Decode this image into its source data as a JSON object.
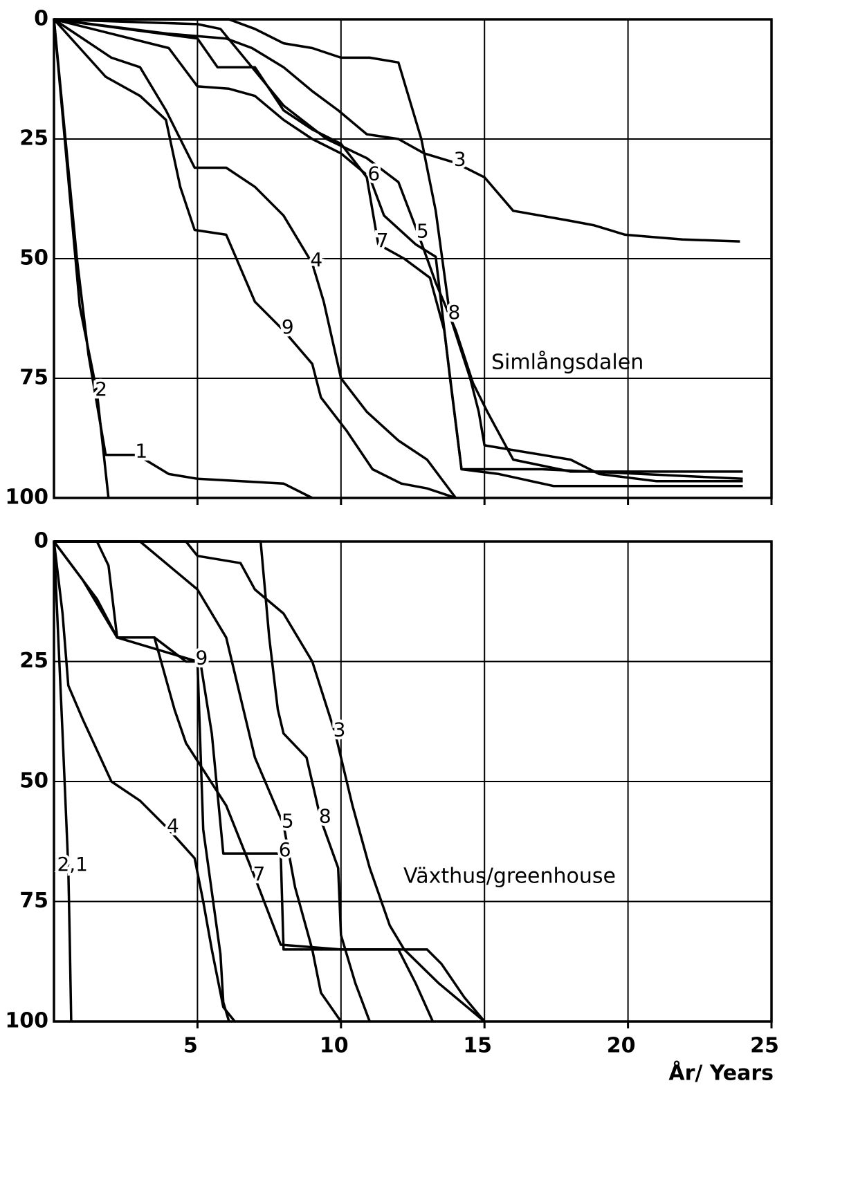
{
  "chart_data": [
    {
      "type": "line",
      "annotation": "Simlångsdalen",
      "xlim": [
        0,
        25
      ],
      "xticks": [
        5,
        10,
        15,
        20,
        25
      ],
      "xtick_labels": false,
      "ylim": [
        100,
        0
      ],
      "yticks": [
        0,
        25,
        50,
        75,
        100
      ],
      "grid": true,
      "series": [
        {
          "name": "1",
          "color": "#000000",
          "x": [
            0,
            0.8,
            1.2,
            1.8,
            2.9,
            4,
            5,
            8,
            9
          ],
          "values": [
            0,
            50,
            70,
            91,
            91,
            95,
            96,
            97,
            100
          ]
        },
        {
          "name": "2",
          "color": "#000000",
          "x": [
            0,
            0.9,
            1.5,
            1.9
          ],
          "values": [
            0,
            60,
            78,
            100
          ]
        },
        {
          "name": "3",
          "color": "#000000",
          "x": [
            0,
            4,
            6,
            6.9,
            8,
            9,
            9.9,
            10.9,
            12,
            12.9,
            14,
            15,
            16,
            17.9,
            18.8,
            19.9,
            20.9,
            21.9,
            23.9
          ],
          "values": [
            0,
            3,
            4,
            6,
            10,
            15,
            19,
            24,
            25,
            28,
            30,
            33,
            40,
            42,
            43,
            45,
            45.5,
            46,
            46.4
          ]
        },
        {
          "name": "4",
          "color": "#000000",
          "x": [
            0,
            2,
            3,
            3.9,
            4.9,
            6,
            7,
            8,
            9,
            9.4,
            10,
            10.9,
            12,
            13,
            14
          ],
          "values": [
            0,
            8,
            10,
            19,
            31,
            31,
            35,
            41,
            51,
            59,
            75,
            82,
            88,
            92,
            100
          ]
        },
        {
          "name": "5",
          "color": "#000000",
          "x": [
            0,
            5,
            5.8,
            6.9,
            8,
            9.5,
            10.9,
            12,
            12.7,
            13.3,
            14,
            14.6,
            15.1,
            16,
            18,
            24
          ],
          "values": [
            0,
            1,
            2,
            10,
            18,
            25,
            29,
            34,
            45,
            55,
            65,
            76,
            82,
            92,
            94.5,
            94.5
          ]
        },
        {
          "name": "6",
          "color": "#000000",
          "x": [
            0,
            4,
            5,
            6.1,
            7,
            8,
            9,
            10,
            11,
            11.5,
            12.6,
            13.3,
            13.8,
            14.2,
            17,
            24
          ],
          "values": [
            0,
            6,
            14,
            14.5,
            16,
            21,
            25,
            28,
            33,
            41,
            47,
            49.6,
            75,
            94,
            94,
            96
          ]
        },
        {
          "name": "7",
          "color": "#000000",
          "x": [
            0,
            5,
            5.7,
            7,
            8,
            9,
            10,
            10.9,
            11.3,
            12.2,
            13.1,
            13.6,
            14.2,
            15.5,
            17.4,
            24
          ],
          "values": [
            0,
            4,
            10,
            10,
            19,
            23,
            26,
            33,
            47,
            50,
            54,
            65,
            94,
            95,
            97.5,
            97.5
          ]
        },
        {
          "name": "8",
          "color": "#000000",
          "x": [
            0,
            6.1,
            7,
            8,
            9,
            10,
            11,
            12,
            12.8,
            13.3,
            13.8,
            14.5,
            14.8,
            15,
            17,
            18,
            19,
            21,
            24
          ],
          "values": [
            0,
            0,
            2,
            5,
            6,
            8,
            8,
            9,
            25,
            40,
            62,
            75,
            82,
            89,
            91,
            92,
            95,
            96.5,
            96.5
          ]
        },
        {
          "name": "9",
          "color": "#000000",
          "x": [
            0,
            1.8,
            3,
            3.9,
            4.4,
            4.9,
            6,
            7,
            8,
            9,
            9.3,
            10.2,
            11.1,
            12.1,
            13,
            14
          ],
          "values": [
            0,
            12,
            16,
            21,
            35,
            44,
            45,
            59,
            65,
            72,
            79,
            86,
            94,
            97,
            98,
            100
          ]
        }
      ]
    },
    {
      "type": "line",
      "annotation": "Växthus/greenhouse",
      "xlabel": "År/ Years",
      "xlim": [
        0,
        25
      ],
      "xticks": [
        5,
        10,
        15,
        20,
        25
      ],
      "xtick_labels": true,
      "ylim": [
        100,
        0
      ],
      "yticks": [
        0,
        25,
        50,
        75,
        100
      ],
      "grid": true,
      "series": [
        {
          "name": "2,1",
          "color": "#000000",
          "x": [
            0,
            0.3,
            0.5,
            0.55,
            0.6
          ],
          "values": [
            0,
            40,
            68,
            83,
            100
          ]
        },
        {
          "name": "3",
          "color": "#000000",
          "x": [
            0,
            4.6,
            5,
            6.5,
            7,
            8,
            9,
            9.8,
            10.4,
            11,
            11.7,
            12.2,
            13.4,
            15
          ],
          "values": [
            0,
            0,
            3,
            4.5,
            10,
            15,
            25,
            40,
            55,
            68,
            80,
            85,
            92,
            100
          ]
        },
        {
          "name": "4",
          "color": "#000000",
          "x": [
            0,
            0.3,
            0.5,
            1,
            2,
            3,
            4,
            4.9,
            5.2,
            5.5,
            5.9,
            6.3
          ],
          "values": [
            0,
            15,
            30,
            37,
            50,
            54,
            60,
            66,
            75,
            85,
            97,
            100
          ]
        },
        {
          "name": "5",
          "color": "#000000",
          "x": [
            0,
            3,
            5,
            6,
            6.6,
            7,
            8,
            8.4,
            9,
            9.3,
            10
          ],
          "values": [
            0,
            0,
            10,
            20,
            35,
            45,
            59,
            72,
            85,
            94,
            100
          ]
        },
        {
          "name": "6",
          "color": "#000000",
          "x": [
            0,
            1.5,
            2.2,
            3.5,
            4.6,
            5.1,
            5.5,
            5.9,
            7.9,
            8,
            11,
            13,
            13.5,
            14.3,
            15
          ],
          "values": [
            0,
            12,
            20,
            20,
            25,
            25,
            40,
            65,
            65,
            85,
            85,
            85,
            88,
            95,
            100
          ]
        },
        {
          "name": "7",
          "color": "#000000",
          "x": [
            0,
            1,
            2.2,
            3.5,
            4.2,
            4.6,
            6,
            7,
            7.9,
            10,
            12,
            12.6,
            13.2
          ],
          "values": [
            0,
            8,
            20,
            20,
            35,
            42,
            55,
            70,
            84,
            85,
            85,
            92,
            100
          ]
        },
        {
          "name": "8",
          "color": "#000000",
          "x": [
            0,
            7.2,
            7.5,
            7.8,
            8,
            8.8,
            9.3,
            9.9,
            10,
            10.5,
            11
          ],
          "values": [
            0,
            0,
            20,
            35,
            40,
            45,
            58,
            68,
            82,
            92,
            100
          ]
        },
        {
          "name": "9",
          "color": "#000000",
          "x": [
            0,
            1.5,
            1.9,
            2.2,
            5,
            5.2,
            5.8,
            5.9,
            6.1
          ],
          "values": [
            0,
            0,
            5,
            20,
            25,
            60,
            86,
            96,
            100
          ]
        }
      ]
    }
  ]
}
